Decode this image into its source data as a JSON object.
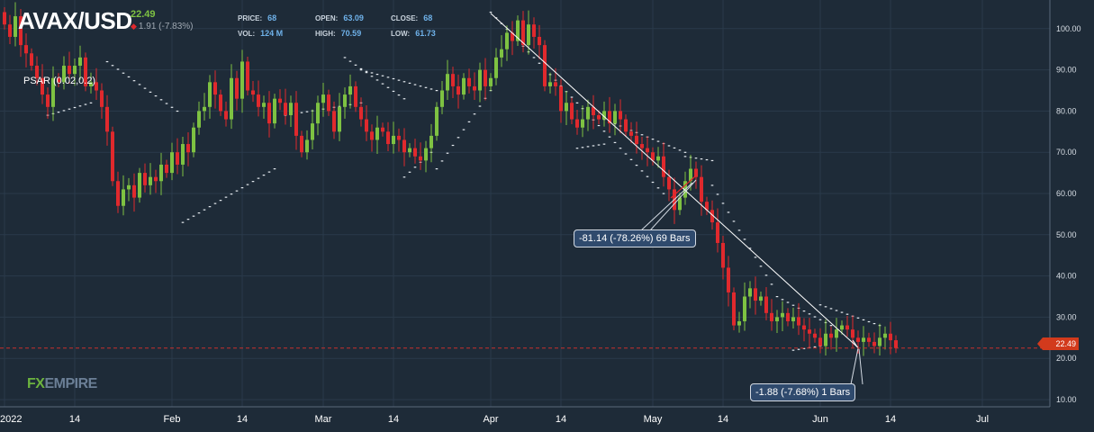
{
  "header": {
    "symbol": "AVAX/USD",
    "last": "22.49",
    "change": "1.91 (-7.83%)",
    "stats": [
      {
        "label": "PRICE:",
        "value": "68"
      },
      {
        "label": "OPEN:",
        "value": "63.09"
      },
      {
        "label": "CLOSE:",
        "value": "68"
      },
      {
        "label": "VOL:",
        "value": "124 M"
      },
      {
        "label": "HIGH:",
        "value": "70.59"
      },
      {
        "label": "LOW:",
        "value": "61.73"
      }
    ],
    "indicator": "PSAR (0.02,0.2)"
  },
  "logo": {
    "fx": "FX",
    "empire": "EMPIRE"
  },
  "annotations": [
    {
      "id": "drop-long",
      "text": "-81.14 (-78.26%) 69 Bars",
      "from": {
        "date": "2022-04-01",
        "price": 103.7
      },
      "to": {
        "date": "2022-06-08",
        "price": 22.6
      }
    },
    {
      "id": "drop-short",
      "text": "-1.88 (-7.68%) 1 Bars",
      "from": {
        "date": "2022-06-07",
        "price": 24.4
      },
      "to": {
        "date": "2022-06-08",
        "price": 22.5
      }
    }
  ],
  "price_tag": "22.49",
  "colors": {
    "up": "#7ec242",
    "down": "#e0292d",
    "bg": "#1e2b38",
    "grid": "#2a3a4a",
    "price_line": "#c9302c",
    "accent": "#6fb2ea"
  },
  "chart_data": {
    "type": "candlestick",
    "title": "AVAX/USD",
    "x_axis": {
      "type": "date",
      "tick_labels": [
        "2022",
        "14",
        "Feb",
        "14",
        "Mar",
        "14",
        "Apr",
        "14",
        "May",
        "14",
        "Jun",
        "14",
        "Jul"
      ]
    },
    "y_axis": {
      "position": "right",
      "range": [
        5,
        108
      ],
      "ticks": [
        "10.00",
        "20.00",
        "30.00",
        "40.00",
        "50.00",
        "60.00",
        "70.00",
        "80.00",
        "90.00",
        "100.00"
      ]
    },
    "grid": true,
    "current_price": 22.49,
    "first_date": "2022-01-01",
    "close": [
      101,
      98,
      103,
      96,
      94,
      91,
      88,
      84,
      81,
      88,
      87,
      91,
      89,
      91,
      93,
      86,
      87,
      85,
      81,
      75,
      63,
      57,
      61,
      62,
      59,
      65,
      62,
      64,
      63,
      67,
      65,
      70,
      67,
      72,
      70,
      76,
      80,
      81,
      87,
      84,
      80,
      78,
      88,
      83,
      92,
      85,
      84,
      81,
      82,
      77,
      83,
      82,
      79,
      82,
      74,
      70,
      73,
      77,
      82,
      84,
      80,
      75,
      81,
      84,
      86,
      81,
      78,
      75,
      73,
      76,
      75,
      72,
      74,
      73,
      70,
      71,
      69,
      68,
      71,
      74,
      81,
      85,
      89,
      86,
      84,
      88,
      86,
      85,
      90,
      86,
      88,
      93,
      95,
      99,
      97,
      102,
      96,
      101,
      98,
      96,
      86,
      87,
      86,
      80,
      82,
      78,
      76,
      78,
      81,
      79,
      78,
      80,
      77,
      80,
      78,
      75,
      74,
      72,
      71,
      70,
      68,
      69,
      64,
      61,
      56,
      59,
      63,
      66,
      64,
      58,
      56,
      53,
      48,
      42,
      36,
      28,
      29,
      35,
      37,
      34,
      35,
      31,
      29,
      30,
      31,
      29,
      30,
      28,
      27,
      26,
      25,
      23,
      26,
      25,
      27,
      28,
      27,
      25,
      24,
      25,
      24,
      23,
      25,
      26,
      24.4,
      22.5
    ],
    "psar": [
      {
        "from": "2022-01-09",
        "to": "2022-01-17",
        "start": 79,
        "end": 82
      },
      {
        "from": "2022-01-20",
        "to": "2022-02-02",
        "start": 92,
        "end": 80
      },
      {
        "from": "2022-02-03",
        "to": "2022-02-20",
        "start": 53,
        "end": 66
      },
      {
        "from": "2022-02-22",
        "to": "2022-03-08",
        "start": 79,
        "end": 82
      },
      {
        "from": "2022-03-05",
        "to": "2022-03-16",
        "start": 93,
        "end": 83
      },
      {
        "from": "2022-03-16",
        "to": "2022-03-21",
        "start": 64,
        "end": 70
      },
      {
        "from": "2022-03-08",
        "to": "2022-03-22",
        "start": 90,
        "end": 85
      },
      {
        "from": "2022-03-22",
        "to": "2022-04-01",
        "start": 66,
        "end": 85
      },
      {
        "from": "2022-04-01",
        "to": "2022-05-03",
        "start": 104,
        "end": 60
      },
      {
        "from": "2022-04-17",
        "to": "2022-04-22",
        "start": 71,
        "end": 72
      },
      {
        "from": "2022-04-22",
        "to": "2022-05-07",
        "start": 78,
        "end": 70
      },
      {
        "from": "2022-05-07",
        "to": "2022-05-12",
        "start": 69,
        "end": 68
      },
      {
        "from": "2022-05-12",
        "to": "2022-05-23",
        "start": 62,
        "end": 38
      },
      {
        "from": "2022-05-24",
        "to": "2022-06-03",
        "start": 35,
        "end": 28
      },
      {
        "from": "2022-05-27",
        "to": "2022-06-01",
        "start": 22,
        "end": 23
      },
      {
        "from": "2022-06-01",
        "to": "2022-06-12",
        "start": 33,
        "end": 28
      }
    ]
  }
}
